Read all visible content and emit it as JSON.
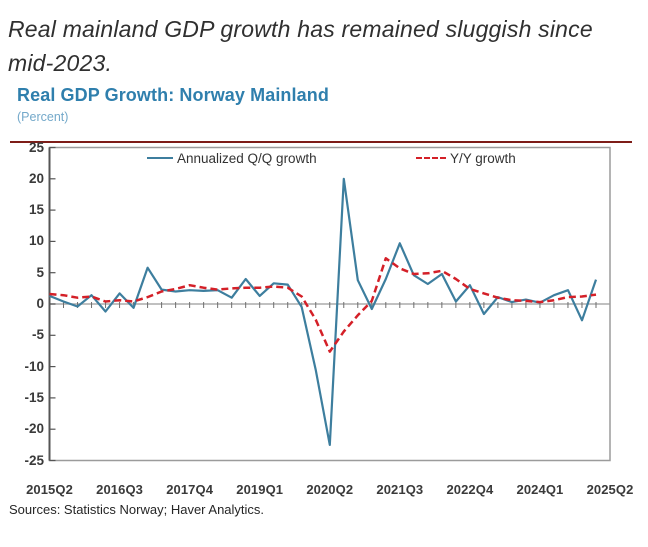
{
  "heading": {
    "line1": "Real mainland GDP growth has remained sluggish since",
    "line2": "mid-2023.",
    "full_text": "Real mainland GDP growth has remained sluggish since mid-2023."
  },
  "chart": {
    "title": "Real GDP Growth: Norway Mainland",
    "unit_label": "(Percent)",
    "legend": [
      {
        "label": "Annualized Q/Q growth"
      },
      {
        "label": "Y/Y growth"
      }
    ],
    "source_note": "Sources: Statistics Norway; Haver Analytics."
  },
  "colors": {
    "title": "#2f7fad",
    "unit_label": "#74a9ca",
    "top_rule": "#7e1d18",
    "qq_line": "#3d7e9e",
    "yy_line": "#d42028",
    "axis_box": "#9b9b9b",
    "left_spine": "#555555",
    "zero_line": "#ababab",
    "tick": "#6e6e6e"
  },
  "chart_data": {
    "type": "line",
    "title": "Real GDP Growth: Norway Mainland",
    "ylabel": "Percent",
    "xlabel": "",
    "ylim": [
      -25,
      25
    ],
    "grid": "zero-line-only",
    "legend_position": "top-inside",
    "x": [
      "2015Q2",
      "2015Q3",
      "2015Q4",
      "2016Q1",
      "2016Q2",
      "2016Q3",
      "2016Q4",
      "2017Q1",
      "2017Q2",
      "2017Q3",
      "2017Q4",
      "2018Q1",
      "2018Q2",
      "2018Q3",
      "2018Q4",
      "2019Q1",
      "2019Q2",
      "2019Q3",
      "2019Q4",
      "2020Q1",
      "2020Q2",
      "2020Q3",
      "2020Q4",
      "2021Q1",
      "2021Q2",
      "2021Q3",
      "2021Q4",
      "2022Q1",
      "2022Q2",
      "2022Q3",
      "2022Q4",
      "2023Q1",
      "2023Q2",
      "2023Q3",
      "2023Q4",
      "2024Q1",
      "2024Q2",
      "2024Q3",
      "2024Q4",
      "2025Q1",
      "2025Q2"
    ],
    "series": [
      {
        "name": "Annualized Q/Q growth",
        "style": "solid",
        "color": "#3d7e9e",
        "values": [
          1.3,
          0.4,
          -0.4,
          1.4,
          -1.2,
          1.7,
          -0.6,
          5.8,
          2.3,
          2.0,
          2.2,
          2.1,
          2.2,
          1.0,
          4.0,
          1.3,
          3.3,
          3.1,
          -0.5,
          -10.5,
          -22.5,
          20.0,
          3.8,
          -0.8,
          4.0,
          9.7,
          4.6,
          3.2,
          4.8,
          0.4,
          3.0,
          -1.6,
          1.1,
          0.3,
          0.7,
          0.2,
          1.4,
          2.2,
          -2.6,
          3.9,
          null
        ]
      },
      {
        "name": "Y/Y growth",
        "style": "dashed",
        "color": "#d42028",
        "values": [
          1.6,
          1.4,
          1.0,
          1.2,
          0.4,
          0.6,
          0.4,
          1.1,
          2.0,
          2.4,
          3.0,
          2.6,
          2.3,
          2.5,
          2.6,
          2.6,
          2.8,
          2.6,
          1.2,
          -2.5,
          -7.6,
          -4.4,
          -1.8,
          0.5,
          7.3,
          5.7,
          4.8,
          4.9,
          5.3,
          4.0,
          2.4,
          1.7,
          1.0,
          0.6,
          0.5,
          0.3,
          0.6,
          1.1,
          1.2,
          1.5,
          null
        ]
      }
    ],
    "y_ticks": [
      25,
      20,
      15,
      10,
      5,
      0,
      -5,
      -10,
      -15,
      -20,
      -25
    ],
    "x_tick_labels": [
      "2015Q2",
      "2016Q3",
      "2017Q4",
      "2019Q1",
      "2020Q2",
      "2021Q3",
      "2022Q4",
      "2024Q1",
      "2025Q2"
    ]
  }
}
